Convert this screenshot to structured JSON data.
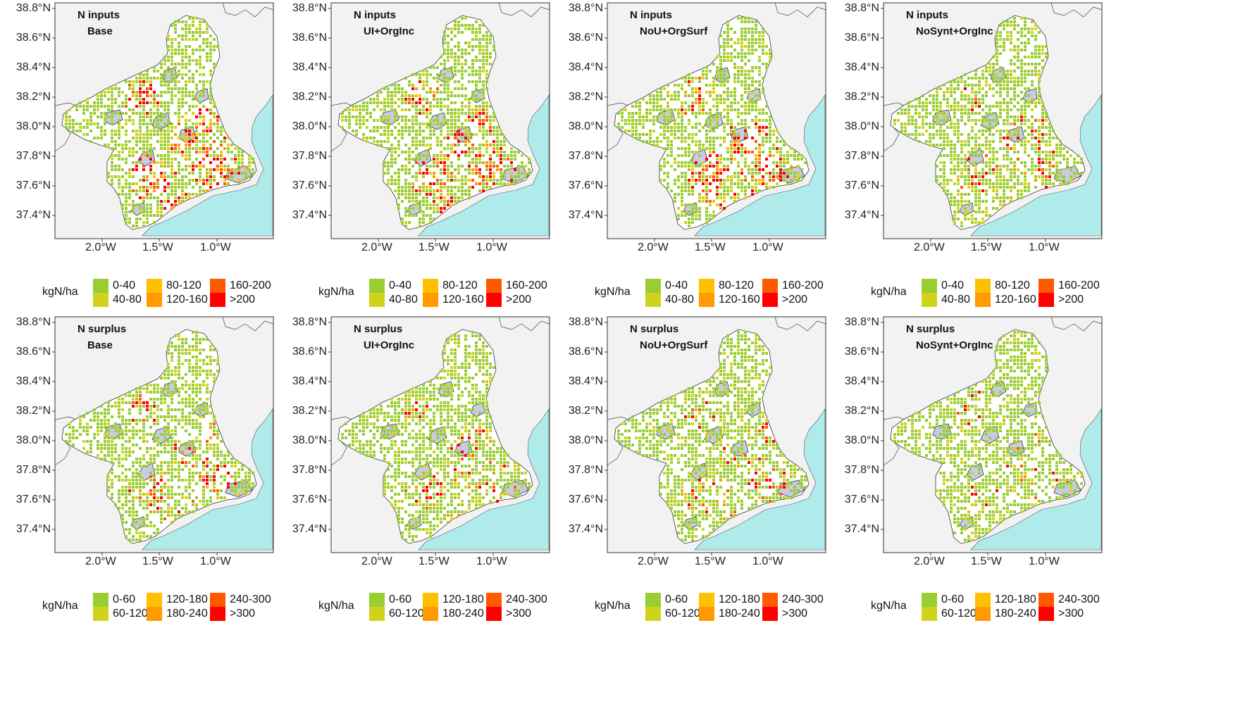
{
  "unit_label": "kgN/ha",
  "y_ticks": [
    "38.8°N",
    "38.6°N",
    "38.4°N",
    "38.2°N",
    "38.0°N",
    "37.8°N",
    "37.6°N",
    "37.4°N"
  ],
  "x_ticks": [
    "2.0°W",
    "1.5°W",
    "1.0°W"
  ],
  "scenarios": [
    "Base",
    "UI+OrgInc",
    "NoU+OrgSurf",
    "NoSynt+OrgInc"
  ],
  "rows": [
    {
      "variable": "N inputs",
      "legend": [
        {
          "label": "0-40",
          "color": "#9acd32"
        },
        {
          "label": "40-80",
          "color": "#cfd31c"
        },
        {
          "label": "80-120",
          "color": "#ffc000"
        },
        {
          "label": "120-160",
          "color": "#ff9a00"
        },
        {
          "label": "160-200",
          "color": "#ff5a00"
        },
        {
          "label": ">200",
          "color": "#ff0000"
        }
      ],
      "intensity": [
        1.0,
        0.9,
        0.8,
        0.35
      ]
    },
    {
      "variable": "N surplus",
      "legend": [
        {
          "label": "0-60",
          "color": "#9acd32"
        },
        {
          "label": "60-120",
          "color": "#cfd31c"
        },
        {
          "label": "120-180",
          "color": "#ffc000"
        },
        {
          "label": "180-240",
          "color": "#ff9a00"
        },
        {
          "label": "240-300",
          "color": "#ff5a00"
        },
        {
          "label": ">300",
          "color": "#ff0000"
        }
      ],
      "intensity": [
        0.55,
        0.45,
        0.4,
        0.2
      ]
    }
  ],
  "colors": {
    "land_background": "#f2f2f2",
    "sea": "#b0ebec",
    "region_fill": "#ffffff",
    "protected_area": "#c8cbe8"
  }
}
